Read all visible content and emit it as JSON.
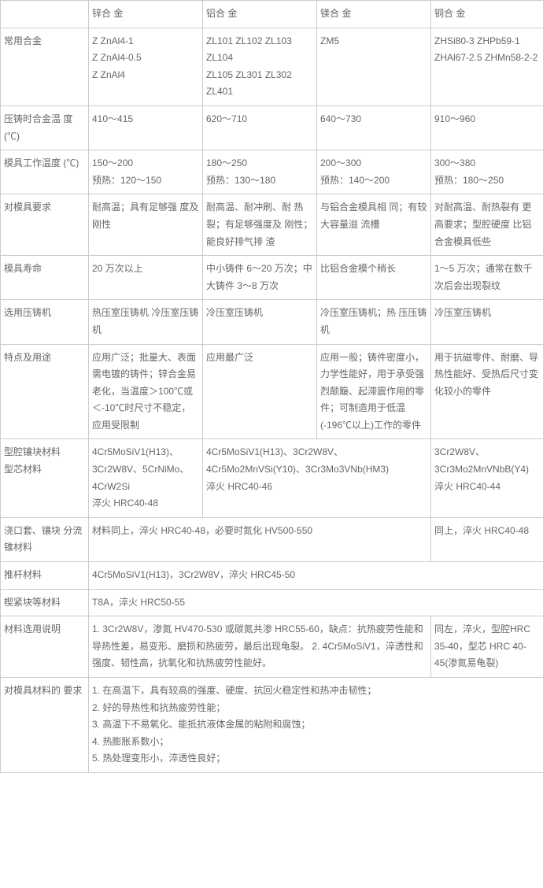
{
  "table": {
    "header": [
      "",
      "锌合 金",
      "铝合 金",
      "镁合 金",
      "铜合 金"
    ],
    "rows": [
      {
        "label": "常用合金",
        "cells": [
          "Z ZnAl4-1\nZ ZnAl4-0.5\nZ ZnAl4",
          "ZL101 ZL102 ZL103 ZL104\nZL105 ZL301 ZL302 ZL401",
          "ZM5",
          "ZHSi80-3 ZHPb59-1 ZHAl67-2.5 ZHMn58-2-2"
        ]
      },
      {
        "label": "压铸时合金温 度(℃)",
        "cells": [
          "410～415",
          "620～710",
          "640～730",
          "910～960"
        ]
      },
      {
        "label": "模具工作温度 (℃)",
        "cells": [
          "150～200\n预热：120～150",
          "180～250\n预热：130～180",
          "200～300\n预热：140～200",
          "300～380\n预热：180～250"
        ]
      },
      {
        "label": "对模具要求",
        "cells": [
          "耐高温；具有足够强 度及刚性",
          "耐高温、耐冲刷、耐 热裂；有足够强度及 刚性；能良好排气排 渣",
          "与铝合金模具相 同；有较大容量溢 流槽",
          "对耐高温、耐热裂有 更高要求；型腔硬度 比铝合金模具低些"
        ]
      },
      {
        "label": "模具寿命",
        "cells": [
          "20 万次以上",
          "中小铸件 6～20 万次；中大铸件 3～8 万次",
          "比铝合金模个稍长",
          "1～5 万次；通常在数千次后会出现裂纹"
        ]
      },
      {
        "label": "选用压铸机",
        "cells": [
          "热压室压铸机 冷压室压铸机",
          "冷压室压铸机",
          "冷压室压铸机；热 压压铸机",
          "冷压室压铸机"
        ]
      },
      {
        "label": "特点及用途",
        "cells": [
          "应用广泛；批量大、表面需电镀的铸件；锌合金易老化，当温度＞100℃或＜-10℃时尺寸不稳定，应用受限制",
          "应用最广泛",
          "应用一般；铸件密度小，力学性能好，用于承受强烈颠簸、起滞震作用的零件；可制造用于低温(-196℃以上)工作的零件",
          "用于抗磁零件、耐磨、导热性能好、受热后尺寸变化较小的零件"
        ]
      },
      {
        "label": "型腔镶块材料\n型芯材料",
        "cells": [
          "4Cr5MoSiV1(H13)、3Cr2W8V、5CrNiMo、4CrW2Si\n淬火 HRC40-48",
          {
            "text": "4Cr5MoSiV1(H13)、3Cr2W8V、4Cr5Mo2MnVSi(Y10)、3Cr3Mo3VNb(HM3)\n淬火 HRC40-46",
            "colspan": 2
          },
          "3Cr2W8V、3Cr3Mo2MnVNbB(Y4)\n淬火 HRC40-44"
        ]
      },
      {
        "label": "浇口套、镶块 分流锥材料",
        "cells": [
          {
            "text": "材料同上，淬火 HRC40-48，必要时氮化 HV500-550",
            "colspan": 3
          },
          "同上，淬火 HRC40-48"
        ]
      },
      {
        "label": "推杆材料",
        "cells": [
          {
            "text": "4Cr5MoSiV1(H13)，3Cr2W8V，淬火 HRC45-50",
            "colspan": 4
          }
        ]
      },
      {
        "label": "楔紧块等材料",
        "cells": [
          {
            "text": "T8A，淬火 HRC50-55",
            "colspan": 4
          }
        ]
      },
      {
        "label": "材料选用说明",
        "cells": [
          {
            "text": "1. 3Cr2W8V，渗氮 HV470-530 或碳氮共渗 HRC55-60，缺点：抗热疲劳性能和导热性差，易变形、磨损和热疲劳，最后出现龟裂。 2. 4Cr5MoSiV1，淬透性和强度、韧性高，抗氧化和抗热疲劳性能好。",
            "colspan": 3
          },
          "同左，淬火，型腔HRC 35-40，型芯 HRC 40-45(渗氮易龟裂)"
        ]
      },
      {
        "label": "对模具材料的 要求",
        "cells": [
          {
            "text": "1. 在高温下，具有较高的强度、硬度、抗回火稳定性和热冲击韧性；\n2. 好的导热性和抗热疲劳性能；\n3. 高温下不易氧化、能抵抗液体金属的粘附和腐蚀；\n4. 热膨胀系数小；\n5. 热处理变形小，淬透性良好；",
            "colspan": 4
          }
        ]
      }
    ]
  },
  "columns": {
    "widths": [
      "112px",
      "145px",
      "145px",
      "145px",
      "143px"
    ]
  },
  "style": {
    "border_color": "#cccccc",
    "text_color": "#666666",
    "font_size": 12,
    "background": "#ffffff"
  }
}
